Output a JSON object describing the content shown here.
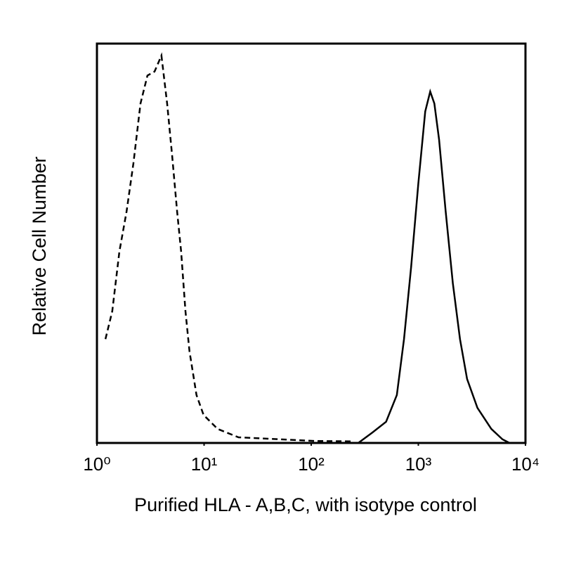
{
  "chart_data": {
    "type": "line",
    "xlabel": "Purified HLA - A,B,C, with isotype control",
    "ylabel": "Relative Cell Number",
    "xscale": "log",
    "xlim": [
      1,
      10000
    ],
    "xticks": [
      {
        "value": 1,
        "label": "10⁰"
      },
      {
        "value": 10,
        "label": "10¹"
      },
      {
        "value": 100,
        "label": "10²"
      },
      {
        "value": 1000,
        "label": "10³"
      },
      {
        "value": 10000,
        "label": "10⁴"
      }
    ],
    "ylim": [
      0,
      100
    ],
    "series": [
      {
        "color": "#000000",
        "line_style": "dashed",
        "x": [
          1.2,
          1.39,
          1.62,
          1.89,
          2.19,
          2.55,
          2.96,
          3.45,
          4.0,
          4.52,
          5.03,
          5.6,
          6.1,
          6.7,
          7.3,
          8.5,
          9.9,
          13.4,
          21,
          52,
          111,
          236
        ],
        "values": [
          26,
          33,
          48,
          58,
          70,
          85,
          92,
          93,
          97,
          85,
          72,
          58,
          48,
          33,
          23,
          12,
          7,
          3.5,
          1.4,
          0.9,
          0.5,
          0.4
        ]
      },
      {
        "color": "#000000",
        "line_style": "solid",
        "x": [
          275,
          372,
          500,
          630,
          735,
          856,
          1000,
          1160,
          1290,
          1410,
          1560,
          1800,
          2100,
          2450,
          2850,
          3560,
          4800,
          6100,
          7100
        ],
        "values": [
          0,
          2.6,
          5.3,
          12,
          26,
          44,
          65,
          83,
          88,
          85,
          76,
          58,
          40,
          26,
          16,
          8.8,
          3.5,
          0.9,
          0
        ]
      }
    ]
  }
}
